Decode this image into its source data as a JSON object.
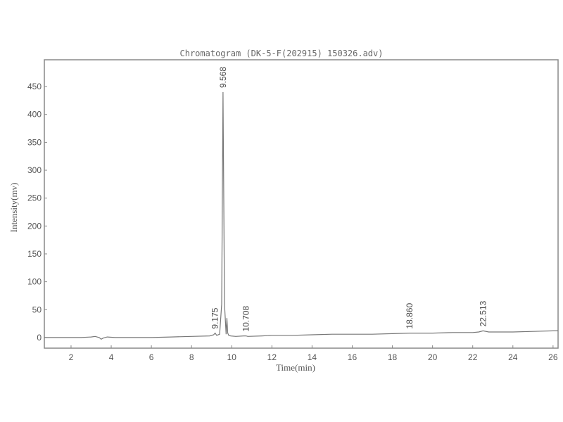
{
  "chart_data": {
    "type": "line",
    "title": "Chromatogram (DK-5-F(202915) 150326.adv)",
    "xlabel": "Time(min)",
    "ylabel": "Intensity(mv)",
    "xlim": [
      0.67,
      26.25
    ],
    "ylim": [
      -19,
      498
    ],
    "xticks": [
      2,
      4,
      6,
      8,
      10,
      12,
      14,
      16,
      18,
      20,
      22,
      24,
      26
    ],
    "yticks": [
      0,
      50,
      100,
      150,
      200,
      250,
      300,
      350,
      400,
      450
    ],
    "grid": false,
    "line_color": "#777777",
    "series": [
      {
        "x": [
          0.67,
          2.5,
          3.0,
          3.2,
          3.4,
          3.5,
          3.6,
          3.8,
          4.2,
          5,
          6,
          7,
          8,
          8.9,
          9.1,
          9.175,
          9.25,
          9.4,
          9.5,
          9.568,
          9.64,
          9.72,
          9.76,
          9.8,
          9.85,
          9.95,
          10.2,
          10.6,
          10.708,
          10.8,
          11.5,
          12,
          13,
          14,
          15,
          16,
          17,
          18,
          18.86,
          19,
          20,
          21,
          22,
          22.3,
          22.513,
          22.8,
          23.5,
          24,
          25,
          26,
          26.25
        ],
        "y": [
          0,
          0,
          1,
          2,
          0,
          -3,
          -1,
          1,
          0,
          0,
          0,
          1,
          2,
          3,
          5,
          8,
          4,
          6,
          60,
          440,
          60,
          6,
          35,
          8,
          4,
          3,
          2,
          3,
          3,
          2,
          3,
          4,
          4,
          5,
          6,
          6,
          6,
          7,
          8,
          8,
          8,
          9,
          9,
          10,
          12,
          10,
          10,
          10,
          11,
          12,
          12
        ]
      }
    ],
    "peaks": [
      {
        "time": 9.175,
        "label": "9.175",
        "height": 8
      },
      {
        "time": 9.568,
        "label": "9.568",
        "height": 440
      },
      {
        "time": 10.708,
        "label": "10.708",
        "height": 3
      },
      {
        "time": 18.86,
        "label": "18.860",
        "height": 8
      },
      {
        "time": 22.513,
        "label": "22.513",
        "height": 12
      }
    ]
  }
}
